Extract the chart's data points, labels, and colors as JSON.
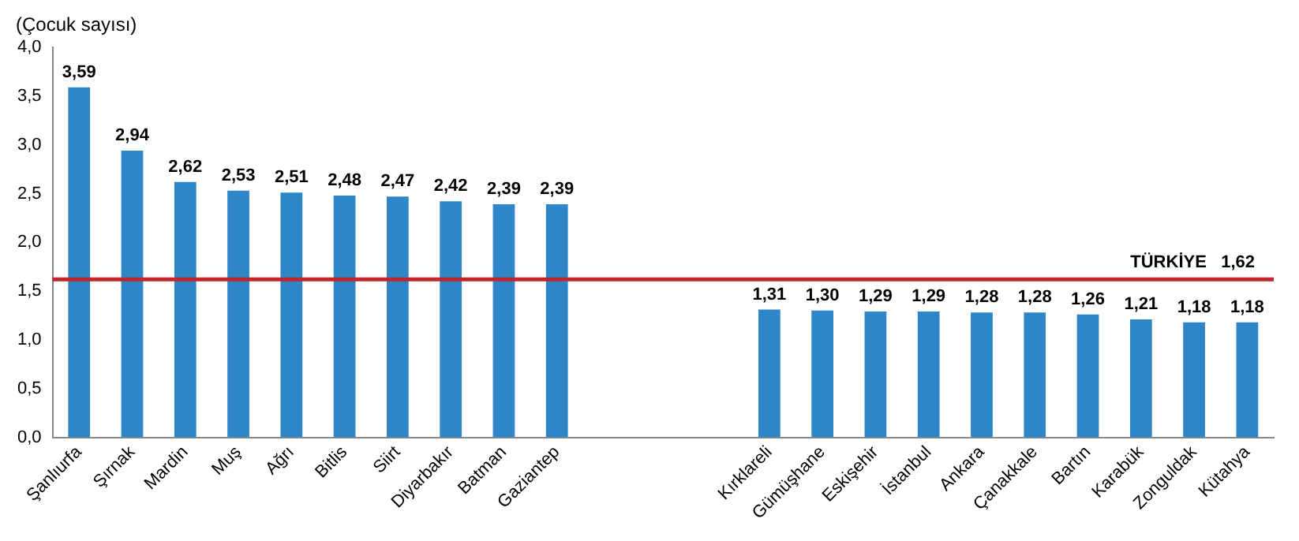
{
  "chart_data": {
    "type": "bar",
    "ylabel": "(Çocuk sayısı)",
    "categories": [
      "Şanlıurfa",
      "Şırnak",
      "Mardin",
      "Muş",
      "Ağrı",
      "Bitlis",
      "Siirt",
      "Diyarbakır",
      "Batman",
      "Gaziantep",
      null,
      null,
      null,
      "Kırklareli",
      "Gümüşhane",
      "Eskişehir",
      "İstanbul",
      "Ankara",
      "Çanakkale",
      "Bartın",
      "Karabük",
      "Zonguldak",
      "Kütahya"
    ],
    "values": [
      3.59,
      2.94,
      2.62,
      2.53,
      2.51,
      2.48,
      2.47,
      2.42,
      2.39,
      2.39,
      null,
      null,
      null,
      1.31,
      1.3,
      1.29,
      1.29,
      1.28,
      1.28,
      1.26,
      1.21,
      1.18,
      1.18
    ],
    "value_labels": [
      "3,59",
      "2,94",
      "2,62",
      "2,53",
      "2,51",
      "2,48",
      "2,47",
      "2,42",
      "2,39",
      "2,39",
      null,
      null,
      null,
      "1,31",
      "1,30",
      "1,29",
      "1,29",
      "1,28",
      "1,28",
      "1,26",
      "1,21",
      "1,18",
      "1,18"
    ],
    "color": "#2e86c9",
    "ylim": [
      0,
      4
    ],
    "yticks": [
      {
        "value": 0,
        "label": "0,0"
      },
      {
        "value": 0.5,
        "label": "0,5"
      },
      {
        "value": 1,
        "label": "1,0"
      },
      {
        "value": 1.5,
        "label": "1,5"
      },
      {
        "value": 2,
        "label": "2,0"
      },
      {
        "value": 2.5,
        "label": "2,5"
      },
      {
        "value": 3,
        "label": "3,0"
      },
      {
        "value": 3.5,
        "label": "3,5"
      },
      {
        "value": 4,
        "label": "4,0"
      }
    ],
    "ref_lines": [
      {
        "axis": "y",
        "value": 1.62,
        "label": "TÜRKİYE   1,62",
        "color": "#c0272d"
      }
    ],
    "grid": false,
    "legend": false
  }
}
